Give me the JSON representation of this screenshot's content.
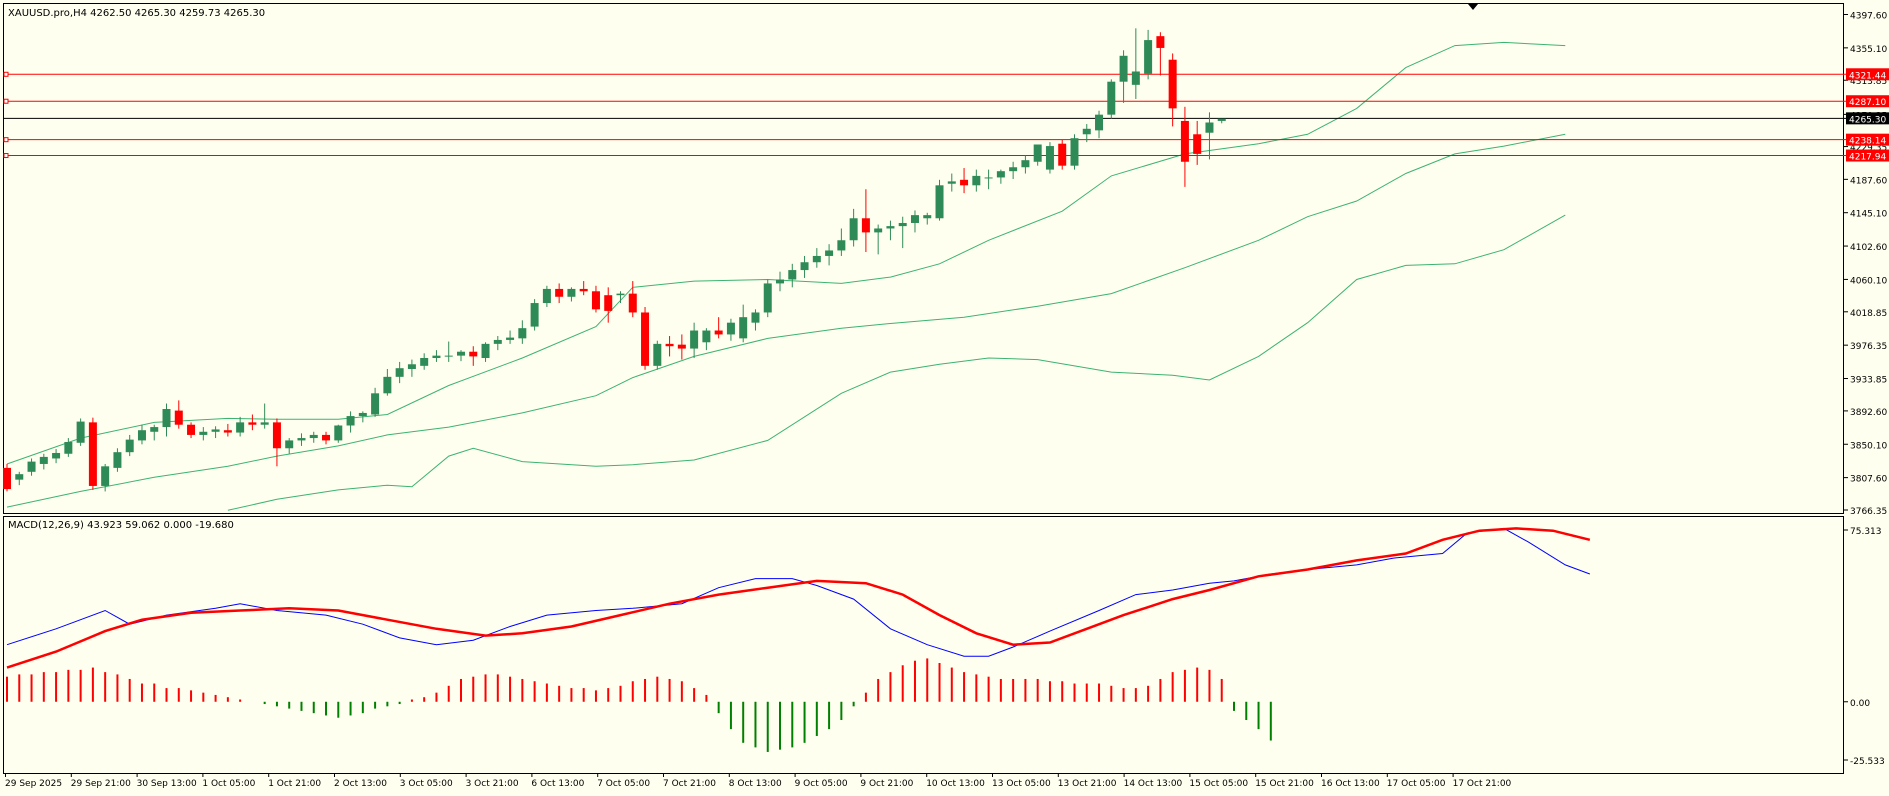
{
  "colors": {
    "background": "#fffff0",
    "grid_frame": "#000000",
    "bull_candle": "#2e8b57",
    "bear_candle": "#ff0000",
    "bollinger": "#3cb371",
    "hline": "#ff0000",
    "macd_line": "#0000ff",
    "signal_line": "#ff0000",
    "hist_pos": "#ff0000",
    "hist_neg": "#008000"
  },
  "chart_data": {
    "type": "candlestick",
    "title": "XAUUSD.pro,H4  4262.50 4265.30 4259.73 4265.30",
    "symbol": "XAUUSD.pro,H4",
    "price_axis": {
      "range": [
        3766.35,
        4418.0
      ],
      "ticks": [
        "4397.60",
        "4355.10",
        "4313.85",
        "4270.35",
        "4229.35",
        "4187.60",
        "4145.10",
        "4102.60",
        "4060.10",
        "4018.85",
        "3976.35",
        "3933.85",
        "3892.60",
        "3850.10",
        "3807.60",
        "3766.35"
      ],
      "price_labels": [
        {
          "text": "4321.44",
          "value": 4321.44,
          "kind": "hline"
        },
        {
          "text": "4287.10",
          "value": 4287.1,
          "kind": "hline"
        },
        {
          "text": "4265.30",
          "value": 4265.3,
          "kind": "current"
        },
        {
          "text": "4238.14",
          "value": 4238.14,
          "kind": "hline"
        },
        {
          "text": "4217.94",
          "value": 4217.94,
          "kind": "hline"
        }
      ]
    },
    "time_axis_labels": [
      "29 Sep 2025",
      "29 Sep 21:00",
      "30 Sep 13:00",
      "1 Oct 05:00",
      "1 Oct 21:00",
      "2 Oct 13:00",
      "3 Oct 05:00",
      "3 Oct 21:00",
      "6 Oct 13:00",
      "7 Oct 05:00",
      "7 Oct 21:00",
      "8 Oct 13:00",
      "9 Oct 05:00",
      "9 Oct 21:00",
      "10 Oct 13:00",
      "13 Oct 05:00",
      "13 Oct 21:00",
      "14 Oct 13:00",
      "15 Oct 05:00",
      "15 Oct 21:00",
      "16 Oct 13:00",
      "17 Oct 05:00",
      "17 Oct 21:00"
    ],
    "candles": [
      [
        3820,
        3825,
        3790,
        3793
      ],
      [
        3805,
        3815,
        3798,
        3812
      ],
      [
        3815,
        3832,
        3810,
        3828
      ],
      [
        3825,
        3838,
        3818,
        3834
      ],
      [
        3832,
        3844,
        3826,
        3839
      ],
      [
        3838,
        3858,
        3834,
        3853
      ],
      [
        3852,
        3883,
        3848,
        3879
      ],
      [
        3878,
        3884,
        3792,
        3797
      ],
      [
        3797,
        3825,
        3790,
        3822
      ],
      [
        3820,
        3845,
        3815,
        3840
      ],
      [
        3840,
        3862,
        3835,
        3856
      ],
      [
        3855,
        3875,
        3850,
        3868
      ],
      [
        3866,
        3875,
        3855,
        3872
      ],
      [
        3872,
        3902,
        3860,
        3895
      ],
      [
        3893,
        3906,
        3870,
        3875
      ],
      [
        3875,
        3878,
        3858,
        3862
      ],
      [
        3862,
        3872,
        3855,
        3866
      ],
      [
        3866,
        3873,
        3858,
        3869
      ],
      [
        3868,
        3876,
        3860,
        3865
      ],
      [
        3865,
        3885,
        3860,
        3878
      ],
      [
        3878,
        3888,
        3868,
        3875
      ],
      [
        3875,
        3902,
        3870,
        3878
      ],
      [
        3878,
        3883,
        3822,
        3845
      ],
      [
        3845,
        3858,
        3838,
        3855
      ],
      [
        3855,
        3864,
        3848,
        3858
      ],
      [
        3858,
        3866,
        3852,
        3862
      ],
      [
        3862,
        3866,
        3850,
        3855
      ],
      [
        3855,
        3875,
        3852,
        3874
      ],
      [
        3874,
        3892,
        3865,
        3886
      ],
      [
        3886,
        3892,
        3878,
        3890
      ],
      [
        3888,
        3922,
        3885,
        3915
      ],
      [
        3915,
        3946,
        3912,
        3936
      ],
      [
        3936,
        3955,
        3928,
        3947
      ],
      [
        3946,
        3958,
        3936,
        3952
      ],
      [
        3950,
        3966,
        3945,
        3960
      ],
      [
        3960,
        3970,
        3955,
        3963
      ],
      [
        3963,
        3981,
        3955,
        3963
      ],
      [
        3963,
        3970,
        3956,
        3968
      ],
      [
        3968,
        3975,
        3950,
        3962
      ],
      [
        3960,
        3980,
        3955,
        3978
      ],
      [
        3978,
        3988,
        3970,
        3983
      ],
      [
        3983,
        3995,
        3978,
        3986
      ],
      [
        3985,
        4008,
        3978,
        3998
      ],
      [
        4000,
        4035,
        3995,
        4030
      ],
      [
        4030,
        4052,
        4025,
        4048
      ],
      [
        4048,
        4055,
        4030,
        4038
      ],
      [
        4038,
        4050,
        4032,
        4048
      ],
      [
        4048,
        4058,
        4040,
        4045
      ],
      [
        4045,
        4052,
        4018,
        4022
      ],
      [
        4040,
        4050,
        4005,
        4020
      ],
      [
        4040,
        4045,
        4030,
        4042
      ],
      [
        4042,
        4058,
        4012,
        4018
      ],
      [
        4018,
        4025,
        3945,
        3950
      ],
      [
        3950,
        3982,
        3945,
        3978
      ],
      [
        3978,
        3988,
        3962,
        3975
      ],
      [
        3977,
        3990,
        3958,
        3972
      ],
      [
        3972,
        4005,
        3960,
        3995
      ],
      [
        3980,
        3998,
        3970,
        3995
      ],
      [
        3995,
        4012,
        3985,
        3990
      ],
      [
        3990,
        4010,
        3982,
        4005
      ],
      [
        3985,
        4028,
        3980,
        4012
      ],
      [
        4005,
        4022,
        3995,
        4018
      ],
      [
        4018,
        4060,
        4012,
        4055
      ],
      [
        4055,
        4070,
        4045,
        4060
      ],
      [
        4060,
        4080,
        4050,
        4072
      ],
      [
        4072,
        4090,
        4062,
        4082
      ],
      [
        4082,
        4100,
        4075,
        4090
      ],
      [
        4090,
        4105,
        4078,
        4097
      ],
      [
        4097,
        4125,
        4090,
        4110
      ],
      [
        4110,
        4150,
        4102,
        4138
      ],
      [
        4138,
        4175,
        4095,
        4120
      ],
      [
        4120,
        4130,
        4092,
        4125
      ],
      [
        4125,
        4135,
        4110,
        4128
      ],
      [
        4128,
        4140,
        4100,
        4132
      ],
      [
        4132,
        4148,
        4120,
        4142
      ],
      [
        4138,
        4145,
        4130,
        4142
      ],
      [
        4138,
        4187,
        4135,
        4180
      ],
      [
        4182,
        4195,
        4172,
        4185
      ],
      [
        4187,
        4202,
        4170,
        4180
      ],
      [
        4180,
        4200,
        4172,
        4192
      ],
      [
        4190,
        4200,
        4175,
        4190
      ],
      [
        4190,
        4200,
        4182,
        4198
      ],
      [
        4198,
        4210,
        4188,
        4203
      ],
      [
        4203,
        4218,
        4195,
        4212
      ],
      [
        4210,
        4230,
        4205,
        4232
      ],
      [
        4200,
        4235,
        4195,
        4230
      ],
      [
        4233,
        4238,
        4200,
        4205
      ],
      [
        4205,
        4245,
        4200,
        4240
      ],
      [
        4245,
        4258,
        4235,
        4252
      ],
      [
        4250,
        4275,
        4240,
        4270
      ],
      [
        4270,
        4315,
        4265,
        4312
      ],
      [
        4312,
        4352,
        4285,
        4345
      ],
      [
        4308,
        4380,
        4290,
        4325
      ],
      [
        4322,
        4378,
        4315,
        4365
      ],
      [
        4370,
        4375,
        4320,
        4355
      ],
      [
        4340,
        4348,
        4255,
        4278
      ],
      [
        4262,
        4280,
        4178,
        4210
      ],
      [
        4245,
        4262,
        4206,
        4220
      ],
      [
        4247,
        4273,
        4213,
        4260
      ],
      [
        4262,
        4265,
        4259,
        4265
      ]
    ],
    "bollinger": {
      "upper": [
        [
          0,
          3825
        ],
        [
          6,
          3858
        ],
        [
          12,
          3878
        ],
        [
          18,
          3883
        ],
        [
          22,
          3882
        ],
        [
          27,
          3882
        ],
        [
          31,
          3888
        ],
        [
          36,
          3925
        ],
        [
          42,
          3960
        ],
        [
          48,
          4000
        ],
        [
          51,
          4050
        ],
        [
          56,
          4058
        ],
        [
          62,
          4060
        ],
        [
          68,
          4055
        ],
        [
          72,
          4063
        ],
        [
          76,
          4080
        ],
        [
          80,
          4110
        ],
        [
          86,
          4147
        ],
        [
          90,
          4192
        ],
        [
          96,
          4220
        ],
        [
          102,
          4233
        ],
        [
          106,
          4245
        ],
        [
          110,
          4278
        ],
        [
          114,
          4330
        ],
        [
          118,
          4358
        ],
        [
          122,
          4362
        ],
        [
          127,
          4358
        ]
      ],
      "middle": [
        [
          0,
          3770
        ],
        [
          6,
          3790
        ],
        [
          12,
          3808
        ],
        [
          18,
          3822
        ],
        [
          22,
          3835
        ],
        [
          27,
          3848
        ],
        [
          31,
          3862
        ],
        [
          36,
          3872
        ],
        [
          42,
          3890
        ],
        [
          48,
          3912
        ],
        [
          51,
          3935
        ],
        [
          56,
          3962
        ],
        [
          62,
          3985
        ],
        [
          68,
          3998
        ],
        [
          72,
          4004
        ],
        [
          78,
          4012
        ],
        [
          84,
          4026
        ],
        [
          90,
          4042
        ],
        [
          96,
          4075
        ],
        [
          102,
          4110
        ],
        [
          106,
          4140
        ],
        [
          110,
          4160
        ],
        [
          114,
          4195
        ],
        [
          118,
          4220
        ],
        [
          122,
          4230
        ],
        [
          127,
          4245
        ]
      ],
      "lower": [
        [
          18,
          3766
        ],
        [
          22,
          3780
        ],
        [
          27,
          3792
        ],
        [
          31,
          3798
        ],
        [
          33,
          3796
        ],
        [
          36,
          3835
        ],
        [
          38,
          3845
        ],
        [
          42,
          3828
        ],
        [
          48,
          3822
        ],
        [
          51,
          3824
        ],
        [
          56,
          3830
        ],
        [
          62,
          3855
        ],
        [
          68,
          3915
        ],
        [
          72,
          3942
        ],
        [
          76,
          3952
        ],
        [
          80,
          3960
        ],
        [
          84,
          3958
        ],
        [
          90,
          3942
        ],
        [
          95,
          3938
        ],
        [
          98,
          3932
        ],
        [
          102,
          3962
        ],
        [
          106,
          4005
        ],
        [
          110,
          4060
        ],
        [
          114,
          4078
        ],
        [
          118,
          4080
        ],
        [
          122,
          4098
        ],
        [
          127,
          4142
        ]
      ]
    },
    "hlines": [
      4321.44,
      4287.1,
      4265.3,
      4238.14,
      4217.94
    ],
    "macd": {
      "label": "MACD(12,26,9) 43.923 59.062 0.000 -19.680",
      "range": [
        -25.533,
        75.313
      ],
      "ticks": [
        "75.313",
        "0.00",
        "-25.533"
      ],
      "macd_line": [
        [
          0,
          25
        ],
        [
          4,
          32
        ],
        [
          8,
          40
        ],
        [
          10,
          34
        ],
        [
          13,
          38
        ],
        [
          17,
          41
        ],
        [
          19,
          43
        ],
        [
          22,
          40
        ],
        [
          26,
          38
        ],
        [
          29,
          34
        ],
        [
          32,
          28
        ],
        [
          35,
          25
        ],
        [
          38,
          27
        ],
        [
          41,
          33
        ],
        [
          44,
          38
        ],
        [
          48,
          40
        ],
        [
          51,
          41
        ],
        [
          55,
          43
        ],
        [
          58,
          50
        ],
        [
          61,
          54
        ],
        [
          64,
          54
        ],
        [
          66,
          51
        ],
        [
          69,
          45
        ],
        [
          72,
          32
        ],
        [
          75,
          25
        ],
        [
          78,
          20
        ],
        [
          80,
          20
        ],
        [
          82,
          24
        ],
        [
          85,
          31
        ],
        [
          89,
          40
        ],
        [
          92,
          47
        ],
        [
          95,
          49
        ],
        [
          98,
          52
        ],
        [
          100,
          53
        ],
        [
          103,
          56
        ],
        [
          106,
          58
        ],
        [
          110,
          60
        ],
        [
          113,
          63
        ],
        [
          117,
          65
        ],
        [
          119,
          74
        ],
        [
          122,
          76
        ],
        [
          124,
          70
        ],
        [
          127,
          60
        ],
        [
          129,
          56
        ]
      ],
      "signal_line": [
        [
          0,
          15
        ],
        [
          4,
          22
        ],
        [
          8,
          31
        ],
        [
          11,
          36
        ],
        [
          15,
          39
        ],
        [
          19,
          40
        ],
        [
          23,
          41
        ],
        [
          27,
          40
        ],
        [
          31,
          36
        ],
        [
          35,
          32
        ],
        [
          39,
          29
        ],
        [
          42,
          30
        ],
        [
          46,
          33
        ],
        [
          50,
          38
        ],
        [
          54,
          43
        ],
        [
          58,
          47
        ],
        [
          62,
          50
        ],
        [
          66,
          53
        ],
        [
          70,
          52
        ],
        [
          73,
          47
        ],
        [
          76,
          38
        ],
        [
          79,
          30
        ],
        [
          82,
          25
        ],
        [
          85,
          26
        ],
        [
          88,
          32
        ],
        [
          91,
          38
        ],
        [
          95,
          45
        ],
        [
          98,
          49
        ],
        [
          102,
          55
        ],
        [
          106,
          58
        ],
        [
          110,
          62
        ],
        [
          114,
          65
        ],
        [
          117,
          71
        ],
        [
          120,
          75
        ],
        [
          123,
          76
        ],
        [
          126,
          75
        ],
        [
          129,
          71
        ]
      ],
      "histogram": [
        11,
        12,
        12,
        13,
        13,
        14,
        14,
        15,
        13,
        12,
        10,
        8,
        8,
        6,
        6,
        5,
        4,
        3,
        2,
        1,
        0,
        -1,
        -2,
        -3,
        -4,
        -5,
        -6,
        -7,
        -6,
        -5,
        -3,
        -2,
        -1,
        1,
        2,
        4,
        7,
        10,
        11,
        12,
        12,
        11,
        10,
        9,
        8,
        7,
        6,
        6,
        5,
        6,
        7,
        9,
        10,
        11,
        10,
        9,
        6,
        3,
        -5,
        -12,
        -18,
        -20,
        -22,
        -21,
        -20,
        -18,
        -15,
        -12,
        -8,
        -2,
        4,
        10,
        13,
        16,
        18,
        19,
        17,
        15,
        13,
        12,
        11,
        10,
        10,
        10,
        10,
        9,
        9,
        8,
        8,
        8,
        7,
        6,
        6,
        7,
        10,
        13,
        14,
        15,
        14,
        10,
        -4,
        -8,
        -12,
        -17
      ]
    }
  }
}
